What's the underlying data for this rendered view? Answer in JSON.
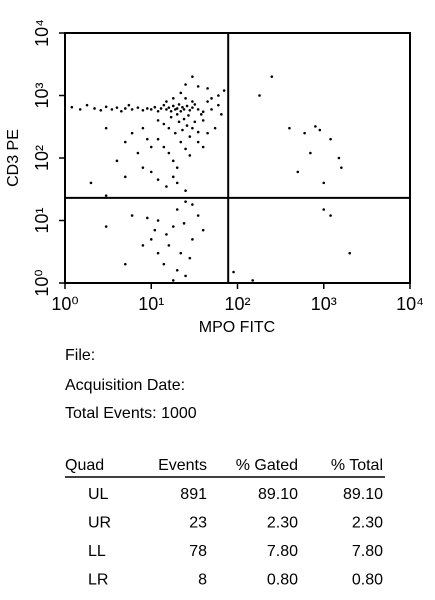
{
  "chart_data": {
    "type": "scatter",
    "x_label": "MPO FITC",
    "y_label": "CD3 PE",
    "log_x": true,
    "log_y": true,
    "color": "#000000",
    "xlim": [
      1,
      10000
    ],
    "ylim": [
      1,
      10000
    ],
    "xticks": [
      {
        "value": 1,
        "label": "10⁰"
      },
      {
        "value": 10,
        "label": "10¹"
      },
      {
        "value": 100,
        "label": "10²"
      },
      {
        "value": 1000,
        "label": "10³"
      },
      {
        "value": 10000,
        "label": "10⁴"
      }
    ],
    "yticks": [
      {
        "value": 1,
        "label": "10⁰"
      },
      {
        "value": 10,
        "label": "10¹"
      },
      {
        "value": 100,
        "label": "10²"
      },
      {
        "value": 1000,
        "label": "10³"
      },
      {
        "value": 10000,
        "label": "10⁴"
      }
    ],
    "gates": {
      "x": 78,
      "y": 23
    },
    "x": [
      1.2,
      1.5,
      1.8,
      2.2,
      2.6,
      3,
      3.5,
      4,
      4.5,
      5,
      5.5,
      6,
      7,
      8,
      9,
      10,
      11,
      12,
      13,
      14,
      15,
      16,
      17,
      18,
      19,
      20,
      21,
      22,
      23,
      24,
      26,
      28,
      30,
      32,
      35,
      40,
      45,
      50,
      60,
      70,
      12,
      14,
      15,
      16,
      17,
      18,
      19,
      20,
      21,
      22,
      23,
      24,
      25,
      26,
      27,
      28,
      30,
      32,
      35,
      38,
      12,
      14,
      16,
      18,
      20,
      22,
      25,
      28,
      30,
      35,
      40,
      45,
      50,
      8,
      9,
      10,
      6,
      7,
      5,
      4,
      3,
      10,
      12,
      15,
      18,
      20,
      25,
      8,
      5,
      2,
      3,
      40,
      55,
      60,
      65,
      45,
      35,
      25,
      30,
      250,
      180,
      400,
      600,
      900,
      800,
      1200,
      1500,
      700,
      1600,
      500,
      1000,
      6,
      12,
      20,
      25,
      18,
      15,
      10,
      8,
      22,
      30,
      14,
      20,
      25,
      12,
      35,
      40,
      3,
      5,
      18,
      28,
      16,
      24,
      9,
      30,
      11,
      150,
      1000,
      1200,
      2000,
      90
    ],
    "values": [
      650,
      600,
      700,
      620,
      580,
      660,
      600,
      640,
      560,
      620,
      700,
      600,
      640,
      580,
      620,
      600,
      650,
      560,
      620,
      700,
      600,
      640,
      560,
      680,
      600,
      620,
      720,
      560,
      650,
      600,
      680,
      580,
      640,
      720,
      600,
      550,
      800,
      900,
      1000,
      1200,
      400,
      350,
      800,
      300,
      450,
      900,
      250,
      500,
      380,
      1100,
      280,
      420,
      900,
      330,
      480,
      220,
      800,
      380,
      260,
      500,
      200,
      150,
      120,
      90,
      70,
      180,
      140,
      110,
      300,
      180,
      400,
      250,
      600,
      300,
      200,
      150,
      250,
      120,
      180,
      90,
      300,
      60,
      45,
      35,
      50,
      40,
      30,
      70,
      50,
      40,
      25,
      150,
      300,
      700,
      500,
      1300,
      1400,
      1500,
      2000,
      2000,
      1000,
      300,
      250,
      280,
      320,
      200,
      100,
      120,
      70,
      60,
      40,
      12,
      10,
      15,
      20,
      8,
      6,
      5,
      4,
      3,
      5,
      2,
      1.6,
      1.3,
      3,
      12,
      7,
      8,
      2,
      1.1,
      2.5,
      4,
      9,
      11,
      18,
      7,
      1.1,
      15,
      12,
      3,
      1.5
    ]
  },
  "stats": {
    "file": "File:",
    "acquisition_date": "Acquisition Date:",
    "total_events_label": "Total Events:",
    "total_events": 1000
  },
  "table": {
    "header": [
      "Quad",
      "Events",
      "% Gated",
      "% Total"
    ],
    "rows": [
      [
        "UL",
        "891",
        "89.10",
        "89.10"
      ],
      [
        "UR",
        "23",
        "2.30",
        "2.30"
      ],
      [
        "LL",
        "78",
        "7.80",
        "7.80"
      ],
      [
        "LR",
        "8",
        "0.80",
        "0.80"
      ]
    ]
  }
}
